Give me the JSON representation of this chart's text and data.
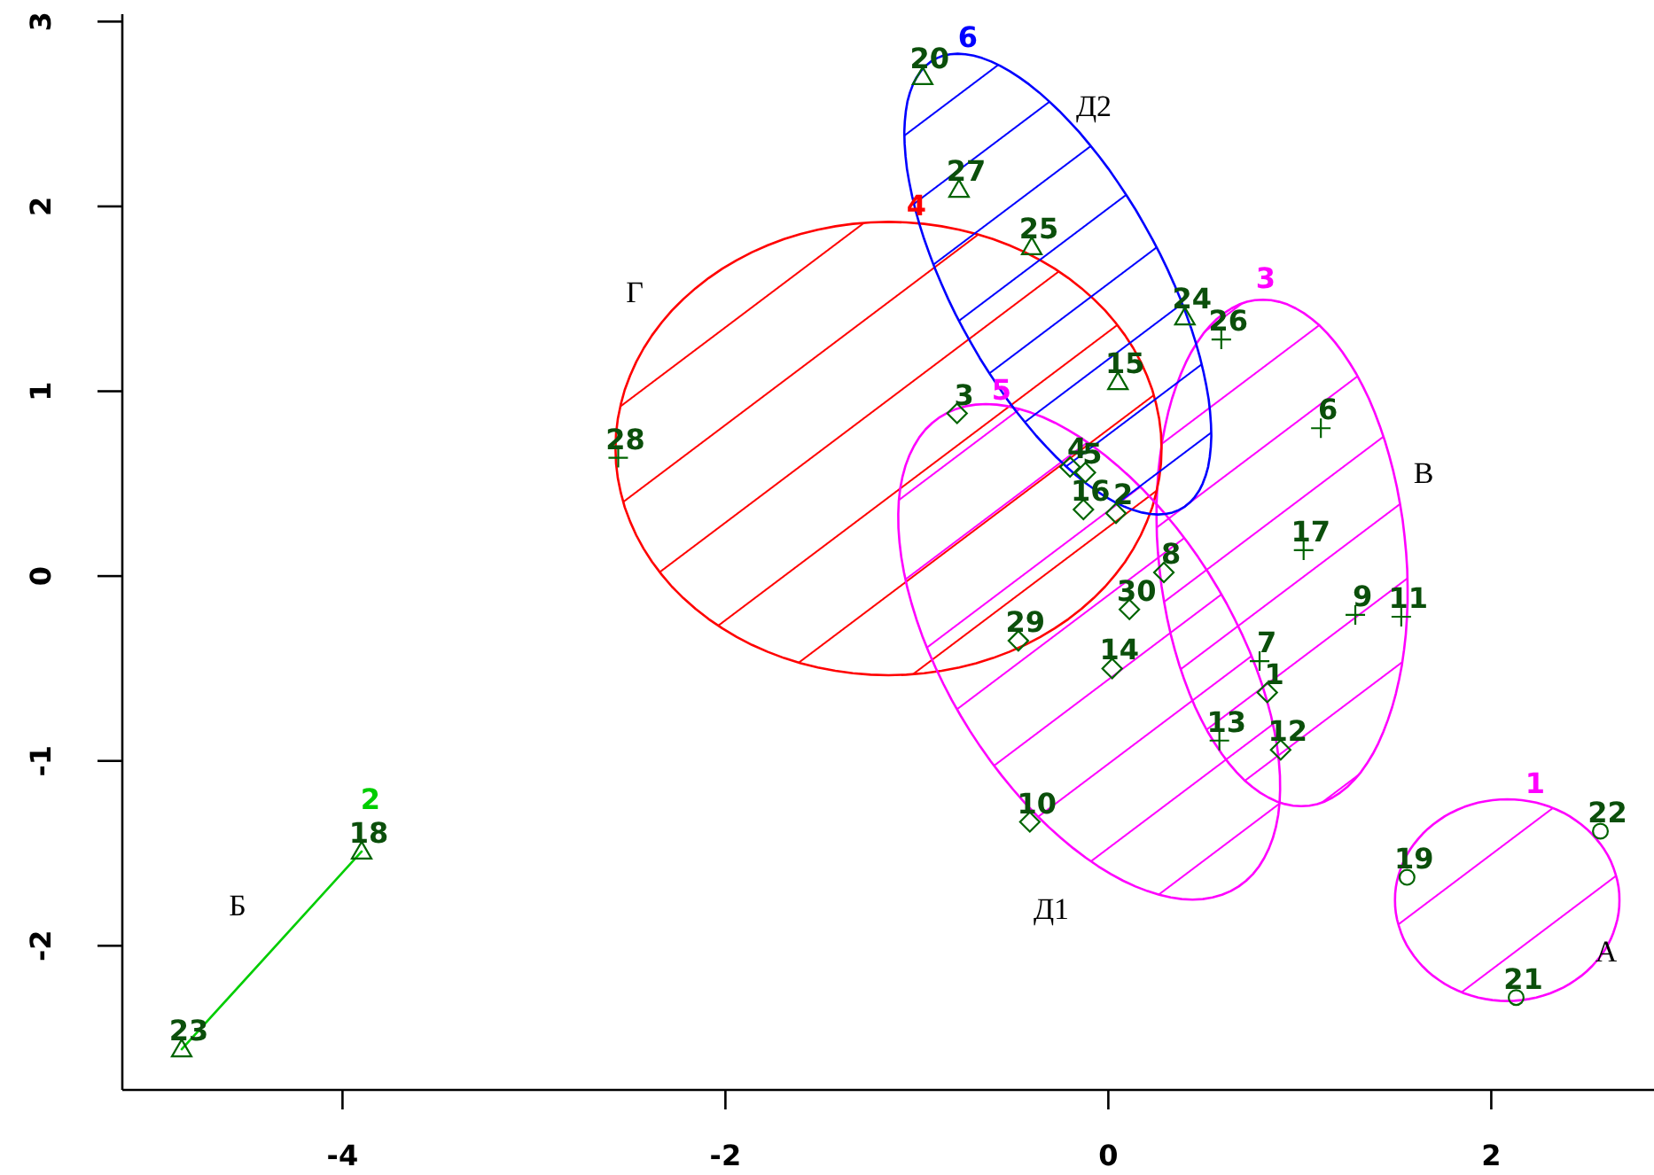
{
  "chart_data": {
    "type": "scatter",
    "xlim": [
      -5.15,
      2.85
    ],
    "ylim": [
      -2.78,
      3.04
    ],
    "xticks": [
      -4,
      -2,
      0,
      2
    ],
    "yticks": [
      -2,
      -1,
      0,
      1,
      2,
      3
    ],
    "series": [
      {
        "type": "line",
        "name": "2",
        "color": "#00cd00",
        "marker": "none",
        "x": [
          -4.84,
          -3.9
        ],
        "values": [
          -2.56,
          -1.49
        ]
      },
      {
        "color": "#006400",
        "marker": "circle",
        "x": [
          1.56,
          2.13,
          2.57
        ],
        "values": [
          -1.63,
          -2.28,
          -1.38
        ]
      },
      {
        "color": "#006400",
        "marker": "triangle",
        "x": [
          -3.9,
          -4.84
        ],
        "values": [
          -1.49,
          -2.56
        ]
      },
      {
        "color": "#006400",
        "marker": "cross",
        "x": [
          1.11,
          0.79,
          1.29,
          1.53,
          0.58,
          1.02,
          0.59
        ],
        "values": [
          0.8,
          -0.46,
          -0.21,
          -0.22,
          -0.89,
          0.14,
          1.28
        ]
      },
      {
        "color": "#006400",
        "marker": "cross",
        "x": [
          -2.56
        ],
        "values": [
          0.64
        ]
      },
      {
        "color": "#006400",
        "marker": "diamond",
        "x": [
          0.83,
          0.04,
          -0.79,
          -0.2,
          -0.12,
          0.29,
          -0.41,
          0.9,
          0.02,
          -0.13,
          -0.47,
          0.11
        ],
        "values": [
          -0.63,
          0.34,
          0.88,
          0.59,
          0.56,
          0.02,
          -1.33,
          -0.94,
          -0.5,
          0.36,
          -0.35,
          -0.18
        ]
      },
      {
        "color": "#006400",
        "marker": "triangle",
        "x": [
          0.05,
          -0.97,
          0.4,
          -0.4,
          -0.78
        ],
        "values": [
          1.05,
          2.7,
          1.4,
          1.78,
          2.09
        ]
      }
    ],
    "annotations": [
      "А",
      "Б",
      "В",
      "Г",
      "Д1",
      "Д2",
      "1",
      "3",
      "4",
      "5",
      "6",
      {
        "text": "19",
        "x": 1.56,
        "y": -1.63
      },
      {
        "text": "21",
        "x": 2.13,
        "y": -2.28
      },
      {
        "text": "22",
        "x": 2.57,
        "y": -1.38
      },
      {
        "text": "18",
        "x": -3.9,
        "y": -1.49
      },
      {
        "text": "23",
        "x": -4.84,
        "y": -2.56
      },
      {
        "text": "6",
        "x": 1.11,
        "y": 0.8
      },
      {
        "text": "7",
        "x": 0.79,
        "y": -0.46
      },
      {
        "text": "9",
        "x": 1.29,
        "y": -0.21
      },
      {
        "text": "11",
        "x": 1.53,
        "y": -0.22
      },
      {
        "text": "13",
        "x": 0.58,
        "y": -0.89
      },
      {
        "text": "17",
        "x": 1.02,
        "y": 0.14
      },
      {
        "text": "26",
        "x": 0.59,
        "y": 1.28
      },
      {
        "text": "28",
        "x": -2.56,
        "y": 0.64
      },
      {
        "text": "1",
        "x": 0.83,
        "y": -0.63
      },
      {
        "text": "2",
        "x": 0.04,
        "y": 0.34
      },
      {
        "text": "3",
        "x": -0.79,
        "y": 0.88
      },
      {
        "text": "4",
        "x": -0.2,
        "y": 0.59
      },
      {
        "text": "5",
        "x": -0.12,
        "y": 0.56
      },
      {
        "text": "8",
        "x": 0.29,
        "y": 0.02
      },
      {
        "text": "10",
        "x": -0.41,
        "y": -1.33
      },
      {
        "text": "12",
        "x": 0.9,
        "y": -0.94
      },
      {
        "text": "14",
        "x": 0.02,
        "y": -0.5
      },
      {
        "text": "16",
        "x": -0.13,
        "y": 0.36
      },
      {
        "text": "29",
        "x": -0.47,
        "y": -0.35
      },
      {
        "text": "30",
        "x": 0.11,
        "y": -0.18
      },
      {
        "text": "15",
        "x": 0.05,
        "y": 1.05
      },
      {
        "text": "20",
        "x": -0.97,
        "y": 2.7
      },
      {
        "text": "24",
        "x": 0.4,
        "y": 1.4
      },
      {
        "text": "25",
        "x": -0.4,
        "y": 1.78
      },
      {
        "text": "27",
        "x": -0.78,
        "y": 2.09
      }
    ]
  }
}
